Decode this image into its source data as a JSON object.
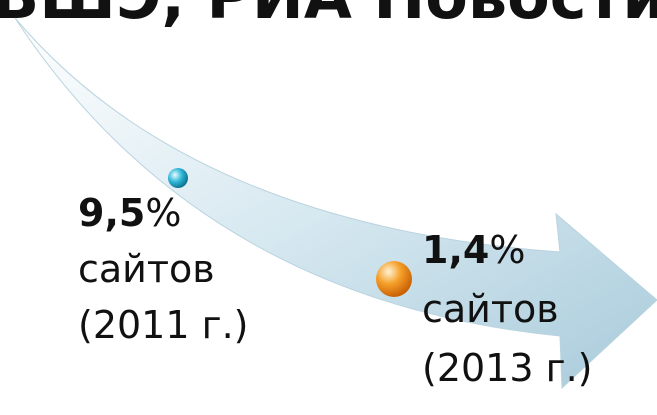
{
  "header": {
    "title": "ВШЭ, РИА Новости)"
  },
  "items": [
    {
      "value": "9,5",
      "unit": "%",
      "label": "сайтов",
      "period": "(2011 г.)"
    },
    {
      "value": "1,4",
      "unit": "%",
      "label": "сайтов",
      "period": "(2013 г.)"
    }
  ]
}
